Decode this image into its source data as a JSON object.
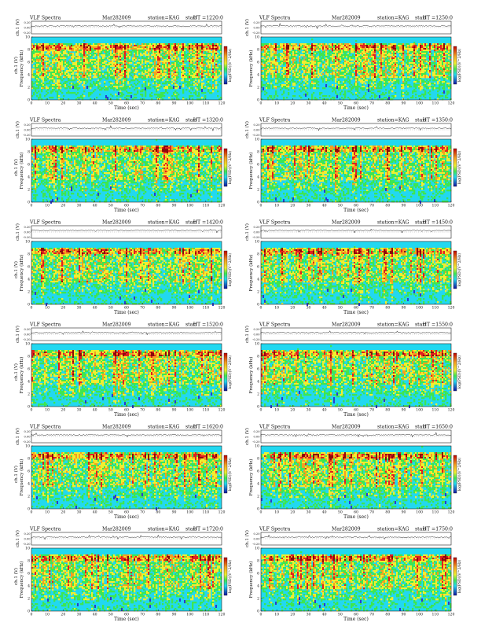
{
  "chart_data": [
    {
      "type": "heatmap",
      "title_left": "VLF Spectra",
      "title_date": "Mar282009",
      "title_station": "station=KAG",
      "title_start": "start",
      "title_ut": "UT =1220:0",
      "ch_label": "ch.1 (V)",
      "ch_ticks": [
        "0.20",
        "0.00",
        "-0.20"
      ],
      "freq_label": "Frequency (kHz)",
      "y_ticks": [
        0,
        2,
        4,
        6,
        8,
        10
      ],
      "ylim": [
        0,
        10
      ],
      "x_ticks": [
        0,
        10,
        20,
        30,
        40,
        50,
        60,
        70,
        80,
        90,
        100,
        110,
        120
      ],
      "xlim": [
        0,
        120
      ],
      "xlabel": "Time (sec)",
      "colorbar_label": "log(PSD)(V^2/Hz)",
      "seed": 11,
      "ch_label_style": "ch1"
    },
    {
      "type": "heatmap",
      "title_left": "VLF Spectra",
      "title_date": "Mar282009",
      "title_station": "station=KAG",
      "title_start": "start",
      "title_ut": "UT =1250:0",
      "ch_label": "ch.1 (V)",
      "ch_ticks": [
        "0.20",
        "0.00",
        "-0.20"
      ],
      "freq_label": "Frequency (kHz)",
      "y_ticks": [
        0,
        2,
        4,
        6,
        8,
        10
      ],
      "ylim": [
        0,
        10
      ],
      "x_ticks": [
        0,
        10,
        20,
        30,
        40,
        50,
        60,
        70,
        80,
        90,
        100,
        110,
        120
      ],
      "xlim": [
        0,
        120
      ],
      "xlabel": "Time (sec)",
      "colorbar_label": "log(PSD)(V^2/Hz)",
      "seed": 12,
      "ch_label_style": "ch"
    },
    {
      "type": "heatmap",
      "title_left": "VLF Spectra",
      "title_date": "Mar282009",
      "title_station": "station=KAG",
      "title_start": "start",
      "title_ut": "UT =1320:0",
      "ch_label": "ch.1 (V)",
      "ch_ticks": [
        "0.20",
        "0.00",
        "-0.20"
      ],
      "freq_label": "Frequency (kHz)",
      "y_ticks": [
        0,
        2,
        4,
        6,
        8,
        10
      ],
      "ylim": [
        0,
        10
      ],
      "x_ticks": [
        0,
        10,
        20,
        30,
        40,
        50,
        60,
        70,
        80,
        90,
        100,
        110,
        120
      ],
      "xlim": [
        0,
        120
      ],
      "xlabel": "Time (sec)",
      "colorbar_label": "log(PSD)(V^2/Hz)",
      "seed": 13,
      "ch_label_style": "ch1"
    },
    {
      "type": "heatmap",
      "title_left": "VLF Spectra",
      "title_date": "Mar282009",
      "title_station": "station=KAG",
      "title_start": "start",
      "title_ut": "UT =1350:0",
      "ch_label": "ch.1 (V)",
      "ch_ticks": [
        "0.20",
        "0.00",
        "-0.20"
      ],
      "freq_label": "Frequency (kHz)",
      "y_ticks": [
        0,
        2,
        4,
        6,
        8,
        10
      ],
      "ylim": [
        0,
        10
      ],
      "x_ticks": [
        0,
        10,
        20,
        30,
        40,
        50,
        60,
        70,
        80,
        90,
        100,
        110,
        120
      ],
      "xlim": [
        0,
        120
      ],
      "xlabel": "Time (sec)",
      "colorbar_label": "log(PSD)(V^2/Hz)",
      "seed": 14,
      "ch_label_style": "ch"
    },
    {
      "type": "heatmap",
      "title_left": "VLF Spectra",
      "title_date": "Mar282009",
      "title_station": "station=KAG",
      "title_start": "start",
      "title_ut": "UT =1420:0",
      "ch_label": "ch.1 (V)",
      "ch_ticks": [
        "0.20",
        "0.00",
        "-0.20"
      ],
      "freq_label": "Frequency (kHz)",
      "y_ticks": [
        0,
        2,
        4,
        6,
        8,
        10
      ],
      "ylim": [
        0,
        10
      ],
      "x_ticks": [
        0,
        10,
        20,
        30,
        40,
        50,
        60,
        70,
        80,
        90,
        100,
        110,
        120
      ],
      "xlim": [
        0,
        120
      ],
      "xlabel": "Time (sec)",
      "colorbar_label": "log(PSD)(V^2/Hz)",
      "seed": 15,
      "ch_label_style": "ch1"
    },
    {
      "type": "heatmap",
      "title_left": "VLF Spectra",
      "title_date": "Mar282009",
      "title_station": "station=KAG",
      "title_start": "start",
      "title_ut": "UT =1450:0",
      "ch_label": "ch.1 (V)",
      "ch_ticks": [
        "0.20",
        "0.00",
        "-0.20"
      ],
      "freq_label": "Frequency (kHz)",
      "y_ticks": [
        0,
        2,
        4,
        6,
        8,
        10
      ],
      "ylim": [
        0,
        10
      ],
      "x_ticks": [
        0,
        10,
        20,
        30,
        40,
        50,
        60,
        70,
        80,
        90,
        100,
        110,
        120
      ],
      "xlim": [
        0,
        120
      ],
      "xlabel": "Time (sec)",
      "colorbar_label": "log(PSD)(V^2/Hz)",
      "seed": 16,
      "ch_label_style": "ch"
    },
    {
      "type": "heatmap",
      "title_left": "VLF Spectra",
      "title_date": "Mar282009",
      "title_station": "station=KAG",
      "title_start": "start",
      "title_ut": "UT =1520:0",
      "ch_label": "ch.1 (V)",
      "ch_ticks": [
        "0.20",
        "0.00",
        "-0.20"
      ],
      "freq_label": "Frequency (kHz)",
      "y_ticks": [
        0,
        2,
        4,
        6,
        8,
        10
      ],
      "ylim": [
        0,
        10
      ],
      "x_ticks": [
        0,
        10,
        20,
        30,
        40,
        50,
        60,
        70,
        80,
        90,
        100,
        110,
        120
      ],
      "xlim": [
        0,
        120
      ],
      "xlabel": "Time (sec)",
      "colorbar_label": "log(PSD)(V^2/Hz)",
      "seed": 17,
      "ch_label_style": "ch1"
    },
    {
      "type": "heatmap",
      "title_left": "VLF Spectra",
      "title_date": "Mar282009",
      "title_station": "station=KAG",
      "title_start": "start",
      "title_ut": "UT =1550:0",
      "ch_label": "ch.1 (V)",
      "ch_ticks": [
        "0.20",
        "0.00",
        "-0.20"
      ],
      "freq_label": "Frequency (kHz)",
      "y_ticks": [
        0,
        2,
        4,
        6,
        8,
        10
      ],
      "ylim": [
        0,
        10
      ],
      "x_ticks": [
        0,
        10,
        20,
        30,
        40,
        50,
        60,
        70,
        80,
        90,
        100,
        110,
        120
      ],
      "xlim": [
        0,
        120
      ],
      "xlabel": "Time (sec)",
      "colorbar_label": "log(PSD)(V^2/Hz)",
      "seed": 18,
      "ch_label_style": "ch"
    },
    {
      "type": "heatmap",
      "title_left": "VLF Spectra",
      "title_date": "Mar282009",
      "title_station": "station=KAG",
      "title_start": "start",
      "title_ut": "UT =1620:0",
      "ch_label": "ch.1 (V)",
      "ch_ticks": [
        "0.20",
        "0.00",
        "-0.20"
      ],
      "freq_label": "Frequency (kHz)",
      "y_ticks": [
        0,
        2,
        4,
        6,
        8,
        10
      ],
      "ylim": [
        0,
        10
      ],
      "x_ticks": [
        0,
        10,
        20,
        30,
        40,
        50,
        60,
        70,
        80,
        90,
        100,
        110,
        120
      ],
      "xlim": [
        0,
        120
      ],
      "xlabel": "Time (sec)",
      "colorbar_label": "log(PSD)(V^2/Hz)",
      "seed": 19,
      "ch_label_style": "ch1"
    },
    {
      "type": "heatmap",
      "title_left": "VLF Spectra",
      "title_date": "Mar282009",
      "title_station": "station=KAG",
      "title_start": "start",
      "title_ut": "UT =1650:0",
      "ch_label": "ch.1 (V)",
      "ch_ticks": [
        "0.20",
        "0.00",
        "-0.20"
      ],
      "freq_label": "Frequency (kHz)",
      "y_ticks": [
        0,
        2,
        4,
        6,
        8,
        10
      ],
      "ylim": [
        0,
        10
      ],
      "x_ticks": [
        0,
        10,
        20,
        30,
        40,
        50,
        60,
        70,
        80,
        90,
        100,
        110,
        120
      ],
      "xlim": [
        0,
        120
      ],
      "xlabel": "Time (sec)",
      "colorbar_label": "log(PSD)(V^2/Hz)",
      "seed": 20,
      "ch_label_style": "ch"
    },
    {
      "type": "heatmap",
      "title_left": "VLF Spectra",
      "title_date": "Mar282009",
      "title_station": "station=KAG",
      "title_start": "start",
      "title_ut": "UT =1720:0",
      "ch_label": "ch.1 (V)",
      "ch_ticks": [
        "0.20",
        "0.00",
        "-0.20"
      ],
      "freq_label": "Frequency (kHz)",
      "y_ticks": [
        0,
        2,
        4,
        6,
        8,
        10
      ],
      "ylim": [
        0,
        10
      ],
      "x_ticks": [
        0,
        10,
        20,
        30,
        40,
        50,
        60,
        70,
        80,
        90,
        100,
        110,
        120
      ],
      "xlim": [
        0,
        120
      ],
      "xlabel": "Time (sec)",
      "colorbar_label": "log(PSD)(V^2/Hz)",
      "seed": 21,
      "ch_label_style": "ch1"
    },
    {
      "type": "heatmap",
      "title_left": "VLF Spectra",
      "title_date": "Mar282009",
      "title_station": "station=KAG",
      "title_start": "start",
      "title_ut": "UT =1750:0",
      "ch_label": "ch.1 (V)",
      "ch_ticks": [
        "0.20",
        "0.00",
        "-0.20"
      ],
      "freq_label": "Frequency (kHz)",
      "y_ticks": [
        0,
        2,
        4,
        6,
        8,
        10
      ],
      "ylim": [
        0,
        10
      ],
      "x_ticks": [
        0,
        10,
        20,
        30,
        40,
        50,
        60,
        70,
        80,
        90,
        100,
        110,
        120
      ],
      "xlim": [
        0,
        120
      ],
      "xlabel": "Time (sec)",
      "colorbar_label": "log(PSD)(V^2/Hz)",
      "seed": 22,
      "ch_label_style": "ch"
    }
  ],
  "colors": {
    "background_cyan": "#22d8f0",
    "mid_green": "#3ee650",
    "yellow": "#f0ee30",
    "orange": "#f4a020",
    "red": "#e02020",
    "dark_red": "#8a0a0a",
    "colorbar_top": "#c00000",
    "colorbar_bottom": "#1010a0"
  }
}
